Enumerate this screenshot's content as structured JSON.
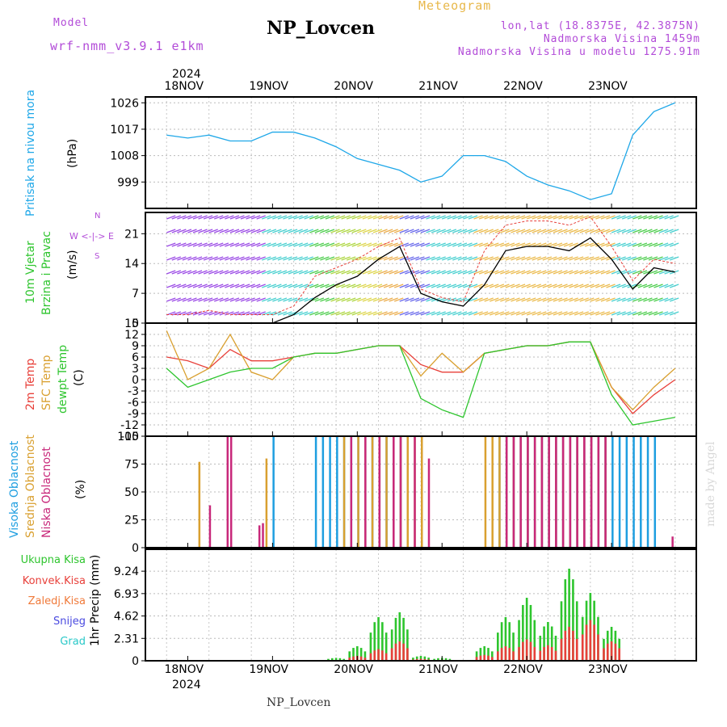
{
  "header": {
    "model_label": "Model",
    "model_name": "wrf-nmm_v3.9.1 e1km",
    "title": "NP_Lovcen",
    "subtitle": "Meteogram",
    "lonlat": "lon,lat (18.8375E, 42.3875N)",
    "altitude": "Nadmorska Visina 1459m",
    "model_altitude": "Nadmorska Visina u modelu 1275.91m",
    "year_top": "2024",
    "year_bottom": "2024",
    "footer": "NP_Lovcen",
    "credit": "made by Angel"
  },
  "colors": {
    "pressure": "#1ea7e8",
    "wind": "#000000",
    "gust": "#e8403a",
    "t2m": "#e8403a",
    "tsfc": "#d9a030",
    "dewpt": "#2ec52e",
    "cloud_high": "#1e9ee0",
    "cloud_mid": "#d9a030",
    "cloud_low": "#c8287a",
    "precip_total": "#2ec52e",
    "precip_conv": "#e8403a",
    "frozen": "#f07a3a",
    "snow": "#4a4ae0",
    "hail": "#29c8c8"
  },
  "panel_labels": {
    "pressure": {
      "name": "Pritisak na nivou mora",
      "unit": "(hPa)"
    },
    "wind": {
      "name1": "10m Vjetar",
      "name2": "Brzina i Pravac",
      "unit": "(m/s)",
      "compass": "W <-|-> E",
      "compass_n": "N",
      "compass_s": "S"
    },
    "temp": {
      "l1": "2m Temp",
      "l2": "SFC Temp",
      "l3": "dewpt Temp",
      "unit": "(C)"
    },
    "cloud": {
      "l1": "Visoka Oblacnost",
      "l2": "Srednja Oblacnost",
      "l3": "Niska Oblacnost",
      "unit": "(%)"
    },
    "precip": {
      "unit": "1hr Precip (mm)",
      "legend": [
        "Ukupna Kisa",
        "Konvek.Kisa",
        "Zaledj.Kisa",
        "Snijeg",
        "Grad"
      ]
    }
  },
  "chart_data": [
    {
      "type": "line",
      "name": "pressure",
      "x_day_labels": [
        "18NOV",
        "19NOV",
        "20NOV",
        "21NOV",
        "22NOV",
        "23NOV"
      ],
      "x_range_hours": [
        0,
        144
      ],
      "ylim": [
        990,
        1028
      ],
      "yticks": [
        999,
        1008,
        1017,
        1026
      ],
      "series": [
        {
          "name": "Pritisak na nivou mora",
          "x": [
            0,
            6,
            12,
            18,
            24,
            30,
            36,
            42,
            48,
            54,
            60,
            66,
            72,
            78,
            84,
            90,
            96,
            102,
            108,
            114,
            120,
            126,
            132,
            138,
            144
          ],
          "values": [
            1015,
            1014,
            1015,
            1013,
            1013,
            1016,
            1016,
            1014,
            1011,
            1007,
            1005,
            1003,
            999,
            1001,
            1008,
            1008,
            1006,
            1001,
            998,
            996,
            993,
            995,
            1015,
            1023,
            1026
          ]
        }
      ]
    },
    {
      "type": "line",
      "name": "wind",
      "ylim": [
        0,
        26
      ],
      "yticks": [
        0,
        7,
        14,
        21
      ],
      "series": [
        {
          "name": "wind speed",
          "x": [
            0,
            6,
            12,
            18,
            24,
            30,
            36,
            42,
            48,
            54,
            60,
            66,
            72,
            78,
            84,
            90,
            96,
            102,
            108,
            114,
            120,
            126,
            132,
            138,
            144
          ],
          "values": [
            0,
            0,
            0,
            0,
            0,
            0,
            2,
            6,
            9,
            11,
            15,
            18,
            7,
            5,
            4,
            9,
            17,
            18,
            18,
            17,
            20,
            15,
            8,
            13,
            12
          ]
        },
        {
          "name": "gust",
          "x": [
            0,
            6,
            12,
            18,
            24,
            30,
            36,
            42,
            48,
            54,
            60,
            66,
            72,
            78,
            84,
            90,
            96,
            102,
            108,
            114,
            120,
            126,
            132,
            138,
            144
          ],
          "values": [
            2,
            2,
            3,
            2,
            2,
            2,
            4,
            11,
            13,
            15,
            18,
            20,
            8,
            6,
            5,
            17,
            23,
            24,
            24,
            23,
            25,
            18,
            10,
            15,
            14
          ]
        }
      ]
    },
    {
      "type": "line",
      "name": "temperature",
      "ylim": [
        -15,
        15
      ],
      "yticks": [
        -15,
        -12,
        -9,
        -6,
        -3,
        0,
        3,
        6,
        9,
        12,
        15
      ],
      "series": [
        {
          "name": "2m Temp",
          "x": [
            0,
            6,
            12,
            18,
            24,
            30,
            36,
            42,
            48,
            54,
            60,
            66,
            72,
            78,
            84,
            90,
            96,
            102,
            108,
            114,
            120,
            126,
            132,
            138,
            144
          ],
          "values": [
            6,
            5,
            3,
            8,
            5,
            5,
            6,
            7,
            7,
            8,
            9,
            9,
            4,
            2,
            2,
            7,
            8,
            9,
            9,
            10,
            10,
            -2,
            -9,
            -4,
            0
          ]
        },
        {
          "name": "SFC Temp",
          "x": [
            0,
            6,
            12,
            18,
            24,
            30,
            36,
            42,
            48,
            54,
            60,
            66,
            72,
            78,
            84,
            90,
            96,
            102,
            108,
            114,
            120,
            126,
            132,
            138,
            144
          ],
          "values": [
            13,
            0,
            3,
            12,
            2,
            0,
            6,
            7,
            7,
            8,
            9,
            9,
            1,
            7,
            2,
            7,
            8,
            9,
            9,
            10,
            10,
            -2,
            -8,
            -2,
            3
          ]
        },
        {
          "name": "dewpt Temp",
          "x": [
            0,
            6,
            12,
            18,
            24,
            30,
            36,
            42,
            48,
            54,
            60,
            66,
            72,
            78,
            84,
            90,
            96,
            102,
            108,
            114,
            120,
            126,
            132,
            138,
            144
          ],
          "values": [
            3,
            -2,
            0,
            2,
            3,
            3,
            6,
            7,
            7,
            8,
            9,
            9,
            -5,
            -8,
            -10,
            7,
            8,
            9,
            9,
            10,
            10,
            -4,
            -12,
            -11,
            -10
          ]
        }
      ]
    },
    {
      "type": "bar",
      "name": "cloud cover",
      "ylim": [
        0,
        100
      ],
      "yticks": [
        0,
        25,
        50,
        75,
        100
      ],
      "series": [
        {
          "name": "Visoka Oblacnost",
          "x": [
            30,
            42,
            44,
            46,
            48,
            50,
            52,
            54,
            56,
            58,
            60,
            62,
            64,
            66,
            68,
            72,
            94,
            96,
            98,
            100,
            102,
            104,
            106,
            108,
            110,
            112,
            114,
            116,
            118,
            120,
            122,
            124,
            126,
            128,
            130,
            132,
            134,
            136,
            138
          ],
          "values": [
            100,
            100,
            100,
            100,
            100,
            100,
            100,
            100,
            100,
            100,
            100,
            100,
            100,
            100,
            100,
            100,
            100,
            100,
            100,
            100,
            100,
            100,
            100,
            100,
            100,
            100,
            100,
            100,
            100,
            100,
            100,
            100,
            100,
            100,
            100,
            100,
            100,
            100,
            100
          ]
        },
        {
          "name": "Srednja Oblacnost",
          "x": [
            9,
            28,
            50,
            54,
            56,
            58,
            60,
            62,
            64,
            66,
            68,
            70,
            72,
            90,
            92,
            94,
            96,
            98,
            100,
            102,
            104,
            106,
            108,
            110,
            112,
            114,
            116,
            118,
            120,
            122,
            124
          ],
          "values": [
            77,
            80,
            100,
            100,
            100,
            100,
            100,
            100,
            100,
            100,
            100,
            100,
            100,
            100,
            100,
            100,
            100,
            100,
            100,
            100,
            100,
            100,
            100,
            100,
            100,
            100,
            100,
            100,
            100,
            100,
            100
          ]
        },
        {
          "name": "Niska Oblacnost",
          "x": [
            12,
            17,
            18,
            26,
            27,
            52,
            56,
            60,
            64,
            66,
            70,
            74,
            96,
            98,
            100,
            102,
            104,
            106,
            108,
            110,
            112,
            114,
            116,
            118,
            120,
            122,
            124,
            143
          ],
          "values": [
            38,
            100,
            100,
            20,
            22,
            100,
            100,
            100,
            100,
            100,
            100,
            80,
            100,
            100,
            100,
            100,
            100,
            100,
            100,
            100,
            100,
            100,
            100,
            100,
            100,
            100,
            100,
            10
          ]
        }
      ]
    },
    {
      "type": "bar",
      "name": "precipitation",
      "ylim": [
        0,
        11.5
      ],
      "yticks": [
        0,
        2.31,
        4.62,
        6.93,
        9.24
      ],
      "series": [
        {
          "name": "Ukupna Kisa",
          "x": [
            0,
            6,
            12,
            18,
            24,
            30,
            36,
            42,
            48,
            54,
            60,
            66,
            72,
            78,
            84,
            90,
            96,
            102,
            108,
            114,
            120,
            126,
            132,
            138,
            144
          ],
          "values": [
            0,
            0,
            0,
            0,
            0,
            0,
            0,
            0,
            0.3,
            1.5,
            4.5,
            5.0,
            0.5,
            0.3,
            0,
            1.5,
            4.5,
            6.5,
            4.0,
            9.5,
            7.0,
            3.5,
            0,
            0,
            0
          ]
        },
        {
          "name": "Konvek.Kisa",
          "x": [
            0,
            6,
            12,
            18,
            24,
            30,
            36,
            42,
            48,
            54,
            60,
            66,
            72,
            78,
            84,
            90,
            96,
            102,
            108,
            114,
            120,
            126,
            132,
            138,
            144
          ],
          "values": [
            0,
            0,
            0,
            0,
            0,
            0,
            0,
            0,
            0,
            0.5,
            1.2,
            2.0,
            0.2,
            0.1,
            0,
            0.6,
            1.5,
            2.2,
            1.6,
            3.5,
            4.2,
            2.0,
            0,
            0,
            0
          ]
        }
      ]
    }
  ]
}
